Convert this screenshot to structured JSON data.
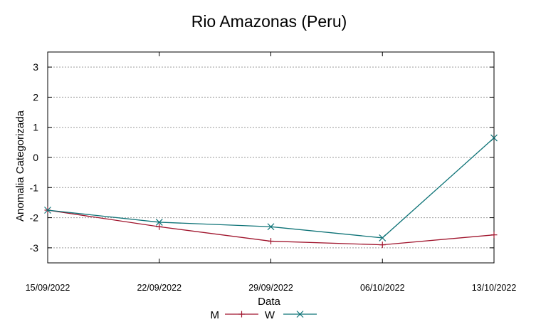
{
  "chart_data": {
    "type": "line",
    "title": "Rio Amazonas (Peru)",
    "xlabel": "Data",
    "ylabel": "Anomalia Categorizada",
    "categories": [
      "15/09/2022",
      "22/09/2022",
      "29/09/2022",
      "06/10/2022",
      "13/10/2022"
    ],
    "ylim": [
      -3.5,
      3.5
    ],
    "yticks": [
      "3",
      "2",
      "1",
      "0",
      "-1",
      "-2",
      "-3"
    ],
    "grid": true,
    "legend_position": "bottom-center",
    "series": [
      {
        "name": "M",
        "color": "#a0152d",
        "marker": "plus",
        "values": [
          -1.75,
          -2.3,
          -2.78,
          -2.9,
          -2.57
        ]
      },
      {
        "name": "W",
        "color": "#0e7377",
        "marker": "x",
        "values": [
          -1.75,
          -2.15,
          -2.3,
          -2.67,
          0.65
        ]
      }
    ]
  }
}
